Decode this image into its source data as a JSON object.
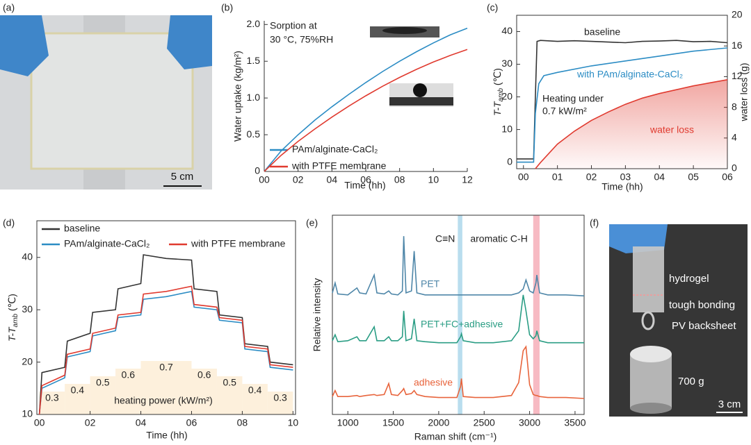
{
  "chart_data": [
    {
      "type": "image",
      "panel_label": "(a)",
      "annotations": [
        "5 cm"
      ]
    },
    {
      "type": "line",
      "panel_label": "(b)",
      "xlabel": "Time (hh)",
      "ylabel": "Water uptake (kg/m²)",
      "annotations": [
        "Sorption at",
        "30 °C, 75%RH"
      ],
      "x": [
        0,
        1,
        2,
        3,
        4,
        5,
        6,
        7,
        8,
        9,
        10,
        11,
        12
      ],
      "series": [
        {
          "name": "PAm/alginate-CaCl₂",
          "color": "#2b8cc4",
          "values": [
            0,
            0.28,
            0.5,
            0.7,
            0.88,
            1.05,
            1.21,
            1.36,
            1.5,
            1.63,
            1.75,
            1.86,
            1.95
          ]
        },
        {
          "name": "with PTFE membrane",
          "color": "#e03a2f",
          "values": [
            0,
            0.22,
            0.41,
            0.58,
            0.74,
            0.89,
            1.03,
            1.16,
            1.28,
            1.39,
            1.49,
            1.58,
            1.66
          ]
        }
      ],
      "xlim": [
        0,
        12
      ],
      "xticks": [
        {
          "value": 0,
          "label": "00"
        },
        {
          "value": 2,
          "label": "02"
        },
        {
          "value": 4,
          "label": "04"
        },
        {
          "value": 6,
          "label": "06"
        },
        {
          "value": 8,
          "label": "08"
        },
        10,
        12
      ],
      "ylim": [
        0,
        2.05
      ],
      "yticks": [
        0,
        0.5,
        {
          "value": 1,
          "label": "1.0"
        },
        1.5,
        {
          "value": 2,
          "label": "2.0"
        }
      ]
    },
    {
      "type": "line",
      "panel_label": "(c)",
      "xlabel": "Time (hh)",
      "ylabel": {
        "main": "T-T",
        "sub": "amb",
        "unit": " (℃)"
      },
      "y2label": "water loss (g)",
      "annotations": [
        "Heating under",
        "0.7 kW/m²"
      ],
      "series": [
        {
          "name": "baseline",
          "color": "#333333",
          "x": [
            -0.2,
            0.3,
            0.35,
            0.4,
            0.5,
            1,
            1.5,
            2,
            2.5,
            3,
            3.5,
            4,
            4.5,
            5,
            5.5,
            6
          ],
          "values": [
            1,
            1,
            20,
            37,
            37.3,
            37,
            37.2,
            37,
            36.8,
            36.6,
            37,
            37.1,
            37.3,
            36.9,
            37,
            36.6
          ]
        },
        {
          "name": "with PAm/alginate-CaCl₂",
          "color": "#2b8cc4",
          "x": [
            -0.2,
            0.3,
            0.35,
            0.45,
            0.6,
            1,
            2,
            3,
            4,
            5,
            6
          ],
          "values": [
            0,
            0,
            15,
            24,
            26.5,
            27.5,
            29.5,
            31,
            32.5,
            34,
            35
          ]
        },
        {
          "name": "water loss",
          "color": "#e03a2f",
          "axis": "y2",
          "fill": "area",
          "x": [
            0.35,
            0.5,
            1,
            1.5,
            2,
            2.5,
            3,
            3.5,
            4,
            4.5,
            5,
            5.5,
            6
          ],
          "values": [
            0,
            0.8,
            3.2,
            4.9,
            6.3,
            7.4,
            8.4,
            9.2,
            9.8,
            10.3,
            10.8,
            11.2,
            11.6
          ]
        }
      ],
      "xlim": [
        -0.2,
        6
      ],
      "xticks": [
        {
          "value": 0,
          "label": "00"
        },
        {
          "value": 1,
          "label": "01"
        },
        {
          "value": 2,
          "label": "02"
        },
        {
          "value": 3,
          "label": "03"
        },
        {
          "value": 4,
          "label": "04"
        },
        {
          "value": 5,
          "label": "05"
        },
        {
          "value": 6,
          "label": "06"
        }
      ],
      "ylim": [
        -2,
        45
      ],
      "yticks": [
        0,
        10,
        20,
        30,
        40
      ],
      "y2lim": [
        0,
        20
      ],
      "y2ticks": [
        0,
        4,
        8,
        12,
        16,
        20
      ]
    },
    {
      "type": "line",
      "panel_label": "(d)",
      "xlabel": "Time (hh)",
      "ylabel": {
        "main": "T-T",
        "sub": "amb",
        "unit": " (℃)"
      },
      "heating_power": {
        "label": "heating power (kW/m²)",
        "color": "#fdf0dc",
        "edges": [
          0,
          1,
          2,
          3,
          4,
          6,
          7,
          8,
          9,
          10
        ],
        "values": [
          0.3,
          0.4,
          0.5,
          0.6,
          0.7,
          0.6,
          0.5,
          0.4,
          0.3
        ]
      },
      "x": [
        0,
        0.1,
        1,
        1.1,
        2,
        2.1,
        3,
        3.1,
        4,
        4.1,
        5,
        6,
        6.1,
        7,
        7.1,
        8,
        8.1,
        9,
        9.1,
        10
      ],
      "series": [
        {
          "name": "baseline",
          "color": "#333333",
          "values": [
            10,
            18,
            19,
            24,
            25.5,
            29.5,
            30,
            34,
            35,
            40.5,
            39.8,
            39.5,
            34,
            33.5,
            29,
            28.5,
            23.5,
            23,
            20,
            19.5
          ]
        },
        {
          "name": "PAm/alginate-CaCl₂",
          "color": "#2b8cc4",
          "values": [
            10,
            15,
            17,
            21,
            22,
            25,
            26,
            28.5,
            29,
            32,
            32.5,
            33.5,
            30.5,
            30,
            28,
            27.5,
            22.5,
            22,
            19,
            18.5
          ]
        },
        {
          "name": "with PTFE membrane",
          "color": "#e03a2f",
          "values": [
            10,
            15.5,
            17.5,
            21.5,
            22.5,
            25.5,
            26.5,
            29,
            29.5,
            33,
            33.5,
            34.5,
            31,
            30.5,
            28.5,
            28,
            23,
            22.5,
            19.5,
            19
          ]
        }
      ],
      "xlim": [
        -0.1,
        10.1
      ],
      "xticks": [
        {
          "value": 0,
          "label": "00"
        },
        {
          "value": 2,
          "label": "02"
        },
        {
          "value": 4,
          "label": "04"
        },
        {
          "value": 6,
          "label": "06"
        },
        {
          "value": 8,
          "label": "08"
        },
        10
      ],
      "ylim": [
        10,
        47
      ],
      "yticks": [
        10,
        20,
        30,
        40
      ]
    },
    {
      "type": "line",
      "panel_label": "(e)",
      "xlabel": "Raman shift (cm⁻¹)",
      "ylabel": "Relative intensity",
      "bands": [
        {
          "label": "C≡N",
          "range": [
            2210,
            2260
          ],
          "color": "#a8d4ea"
        },
        {
          "label": "aromatic C-H",
          "range": [
            3040,
            3110
          ],
          "color": "#f5a9b4"
        }
      ],
      "x": [
        830,
        860,
        890,
        1000,
        1100,
        1130,
        1200,
        1290,
        1320,
        1400,
        1450,
        1480,
        1550,
        1600,
        1615,
        1640,
        1700,
        1730,
        1760,
        1850,
        2000,
        2200,
        2240,
        2250,
        2270,
        2400,
        2600,
        2800,
        2880,
        2930,
        2960,
        3000,
        3040,
        3070,
        3080,
        3110,
        3200,
        3400,
        3600
      ],
      "series": [
        {
          "name": "PET",
          "color": "#4e86a8",
          "values": [
            6.1,
            6.6,
            6.05,
            6,
            6.35,
            6.1,
            6.05,
            7,
            6.1,
            6.05,
            6.2,
            6.05,
            6,
            6.2,
            8.95,
            6.1,
            6.2,
            8.2,
            6.1,
            6,
            6,
            6,
            6,
            6,
            6,
            6,
            6,
            6,
            6.1,
            6.3,
            6.75,
            6.2,
            6.1,
            6.6,
            7,
            6.1,
            6,
            6,
            5.95
          ]
        },
        {
          "name": "PET+FC+adhesive",
          "color": "#2a9d84",
          "values": [
            3.7,
            4,
            3.65,
            3.7,
            3.9,
            3.7,
            3.7,
            4.4,
            3.7,
            3.7,
            3.9,
            3.7,
            3.7,
            3.9,
            5.2,
            3.7,
            3.8,
            4.8,
            3.7,
            3.65,
            3.6,
            3.6,
            3.9,
            4.05,
            3.7,
            3.6,
            3.6,
            3.7,
            4.2,
            6,
            5.2,
            4,
            3.8,
            3.95,
            4.2,
            3.7,
            3.6,
            3.6,
            3.6
          ]
        },
        {
          "name": "adhesive",
          "color": "#e8643c",
          "values": [
            0.9,
            1.2,
            0.9,
            0.9,
            0.95,
            0.9,
            0.95,
            1,
            0.95,
            1,
            1.55,
            1,
            0.95,
            1.2,
            1.3,
            1,
            1.05,
            1.2,
            1,
            0.9,
            0.85,
            0.85,
            1.4,
            1.8,
            0.9,
            0.85,
            0.85,
            0.95,
            1.6,
            3.2,
            3.4,
            1.5,
            1,
            0.95,
            0.95,
            0.9,
            0.85,
            0.85,
            0.8
          ]
        }
      ],
      "xlim": [
        830,
        3600
      ],
      "xticks": [
        1000,
        1500,
        2000,
        2500,
        3000,
        3500
      ],
      "ylim": [
        0,
        10
      ]
    },
    {
      "type": "image",
      "panel_label": "(f)",
      "annotations": [
        "hydrogel",
        "tough bonding",
        "PV backsheet",
        "700 g",
        "3 cm"
      ]
    }
  ]
}
